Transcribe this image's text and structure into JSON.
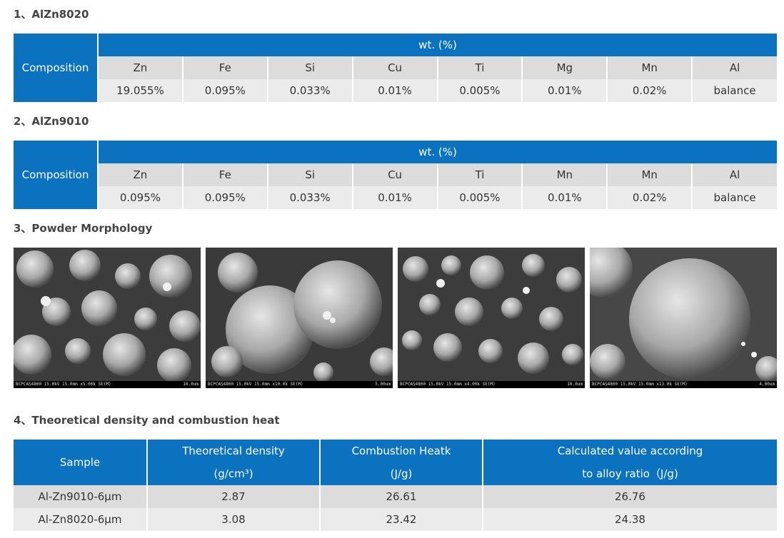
{
  "section1": {
    "title": "1、AlZn8020",
    "composition_label": "Composition",
    "wt_label": "wt. (%)",
    "elements": [
      "Zn",
      "Fe",
      "Si",
      "Cu",
      "Ti",
      "Mg",
      "Mn",
      "Al"
    ],
    "values": [
      "19.055%",
      "0.095%",
      "0.033%",
      "0.01%",
      "0.005%",
      "0.01%",
      "0.02%",
      "balance"
    ]
  },
  "section2": {
    "title": "2、AlZn9010",
    "composition_label": "Composition",
    "wt_label": "wt. (%)",
    "elements": [
      "Zn",
      "Fe",
      "Si",
      "Cu",
      "Ti",
      "Mn",
      "Mn",
      "Al"
    ],
    "values": [
      "0.095%",
      "0.095%",
      "0.033%",
      "0.01%",
      "0.005%",
      "0.01%",
      "0.02%",
      "balance"
    ]
  },
  "section3": {
    "title": "3、Powder Morphology",
    "images": [
      {
        "caption": "BCPCAS4800 15.0kV 15.0mm x5.00k SE(M)",
        "scale": "10.0um"
      },
      {
        "caption": "BCPCAS4800 15.0kV 15.0mm x10.0k SE(M)",
        "scale": "5.00um"
      },
      {
        "caption": "BCPCAS4800 15.0kV 15.0mm x4.00k SE(M)",
        "scale": "10.0um"
      },
      {
        "caption": "BCPCAS4800 15.0kV 15.0mm x13.0k SE(M)",
        "scale": "4.00um"
      }
    ]
  },
  "section4": {
    "title": "4、Theoretical density and combustion heat",
    "headers": [
      {
        "line1": "Sample",
        "line2": ""
      },
      {
        "line1": "Theoretical density",
        "line2": "(g/cm³)"
      },
      {
        "line1": "Combustion Heatk",
        "line2": "(J/g)"
      },
      {
        "line1": "Calculated value according",
        "line2": "to alloy ratio（J/g)"
      }
    ],
    "rows": [
      [
        "Al-Zn9010-6μm",
        "2.87",
        "26.61",
        "26.76"
      ],
      [
        "Al-Zn8020-6μm",
        "3.08",
        "23.42",
        "24.38"
      ]
    ]
  }
}
